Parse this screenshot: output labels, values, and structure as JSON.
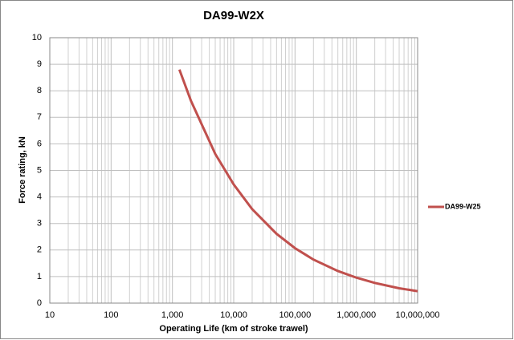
{
  "chart_data": {
    "type": "line",
    "title": "DA99-W2X",
    "x_label": "Operating Life  (km of stroke trawel)",
    "y_label": "Force rating, kN",
    "x_scale": "log",
    "xlim": [
      10,
      10000000
    ],
    "xticks": [
      10,
      100,
      {
        "value": 1000,
        "label": "1,000"
      },
      {
        "value": 10000,
        "label": "10,000"
      },
      {
        "value": 100000,
        "label": "100,000"
      },
      {
        "value": 1000000,
        "label": "1,000,000"
      },
      {
        "value": 10000000,
        "label": "10,000,000"
      }
    ],
    "ylim": [
      0,
      10
    ],
    "yticks": [
      0,
      1,
      2,
      3,
      4,
      5,
      6,
      7,
      8,
      9,
      10
    ],
    "grid": true,
    "minor_grid": true,
    "legend": "right",
    "x": [
      1300,
      2000,
      5000,
      10000,
      20000,
      50000,
      100000,
      200000,
      500000,
      1000000,
      2000000,
      5000000,
      10000000
    ],
    "series": [
      {
        "name": "DA99-W25",
        "color": "#c0504d",
        "values": [
          8.8,
          7.63,
          5.62,
          4.47,
          3.54,
          2.61,
          2.07,
          1.64,
          1.21,
          0.96,
          0.76,
          0.56,
          0.45
        ]
      }
    ]
  }
}
